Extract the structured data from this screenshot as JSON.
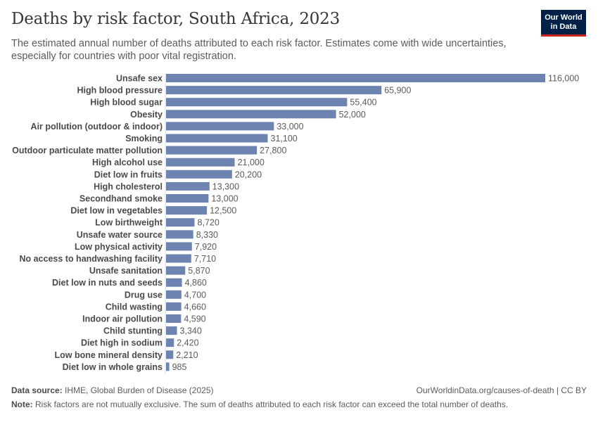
{
  "title": "Deaths by risk factor, South Africa, 2023",
  "subtitle": "The estimated annual number of deaths attributed to each risk factor. Estimates come with wide uncertainties, especially for countries with poor vital registration.",
  "logo": {
    "line1": "Our World",
    "line2": "in Data"
  },
  "colors": {
    "bar": "#6d84b0",
    "logo_bg": "#002147",
    "logo_accent": "#ce261e"
  },
  "chart_data": {
    "type": "bar",
    "orientation": "horizontal",
    "categories": [
      "Unsafe sex",
      "High blood pressure",
      "High blood sugar",
      "Obesity",
      "Air pollution (outdoor & indoor)",
      "Smoking",
      "Outdoor particulate matter pollution",
      "High alcohol use",
      "Diet low in fruits",
      "High cholesterol",
      "Secondhand smoke",
      "Diet low in vegetables",
      "Low birthweight",
      "Unsafe water source",
      "Low physical activity",
      "No access to handwashing facility",
      "Unsafe sanitation",
      "Diet low in nuts and seeds",
      "Drug use",
      "Child wasting",
      "Indoor air pollution",
      "Child stunting",
      "Diet high in sodium",
      "Low bone mineral density",
      "Diet low in whole grains"
    ],
    "values": [
      116000,
      65900,
      55400,
      52000,
      33000,
      31100,
      27800,
      21000,
      20200,
      13300,
      13000,
      12500,
      8720,
      8330,
      7920,
      7710,
      5870,
      4860,
      4700,
      4660,
      4590,
      3340,
      2420,
      2210,
      985
    ],
    "value_labels": [
      "116,000",
      "65,900",
      "55,400",
      "52,000",
      "33,000",
      "31,100",
      "27,800",
      "21,000",
      "20,200",
      "13,300",
      "13,000",
      "12,500",
      "8,720",
      "8,330",
      "7,920",
      "7,710",
      "5,870",
      "4,860",
      "4,700",
      "4,660",
      "4,590",
      "3,340",
      "2,420",
      "2,210",
      "985"
    ],
    "xlim": [
      0,
      116000
    ],
    "title": "Deaths by risk factor, South Africa, 2023",
    "xlabel": "",
    "ylabel": ""
  },
  "footer": {
    "source_label": "Data source:",
    "source_text": "IHME, Global Burden of Disease (2025)",
    "url_text": "OurWorldinData.org/causes-of-death | CC BY",
    "note_label": "Note:",
    "note_text": "Risk factors are not mutually exclusive. The sum of deaths attributed to each risk factor can exceed the total number of deaths."
  }
}
